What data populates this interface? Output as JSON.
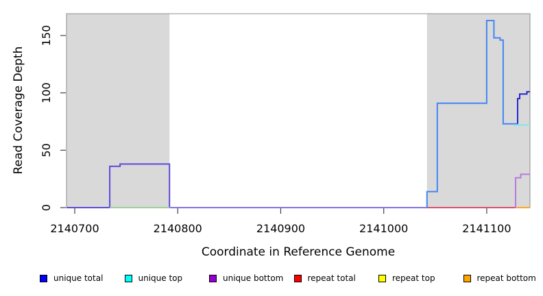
{
  "chart_data": {
    "type": "line",
    "title": "",
    "xlabel": "Coordinate in Reference Genome",
    "ylabel": "Read Coverage Depth",
    "xlim": [
      2140692,
      2141142
    ],
    "ylim": [
      0,
      169
    ],
    "x_ticks": [
      2140700,
      2140800,
      2140900,
      2141000,
      2141100
    ],
    "y_ticks": [
      0,
      50,
      100,
      150
    ],
    "grid": false,
    "legend_position": "bottom",
    "background_regions": [
      {
        "name": "masked-region-left",
        "x0": 2140692,
        "x1": 2140792,
        "color": "#d9d9d9"
      },
      {
        "name": "masked-region-right",
        "x0": 2141042,
        "x1": 2141142,
        "color": "#d9d9d9"
      }
    ],
    "series": [
      {
        "name": "unique-coverage-left-block",
        "color": "#5a49d8",
        "points": [
          [
            2140692,
            0
          ],
          [
            2140734,
            0
          ],
          [
            2140734,
            36
          ],
          [
            2140744,
            36
          ],
          [
            2140744,
            38
          ],
          [
            2140792,
            38
          ],
          [
            2140792,
            0
          ]
        ]
      },
      {
        "name": "unique-coverage-mid-zero",
        "color": "#7d73e8",
        "points": [
          [
            2140792,
            0
          ],
          [
            2141042,
            0
          ]
        ]
      },
      {
        "name": "top-strand-zero-left",
        "color": "#9ccf9a",
        "points": [
          [
            2140734,
            0
          ],
          [
            2140792,
            0
          ]
        ]
      },
      {
        "name": "repeat-total-zero-right",
        "color": "#d94f6e",
        "points": [
          [
            2141042,
            0
          ],
          [
            2141128,
            0
          ]
        ]
      },
      {
        "name": "repeat-bottom-zero-right",
        "color": "#ffa520",
        "points": [
          [
            2141129,
            0
          ],
          [
            2141142,
            0
          ]
        ]
      },
      {
        "name": "unique-total-main",
        "color": "#4285f4",
        "points": [
          [
            2141042,
            0
          ],
          [
            2141042,
            14
          ],
          [
            2141052,
            14
          ],
          [
            2141052,
            91
          ],
          [
            2141100,
            91
          ],
          [
            2141100,
            163
          ],
          [
            2141107,
            163
          ],
          [
            2141107,
            148
          ],
          [
            2141113,
            148
          ],
          [
            2141113,
            146
          ],
          [
            2141116,
            146
          ],
          [
            2141116,
            73
          ],
          [
            2141130,
            73
          ]
        ]
      },
      {
        "name": "unique-top-right",
        "color": "#7de8e8",
        "points": [
          [
            2141126,
            72
          ],
          [
            2141142,
            72
          ]
        ]
      },
      {
        "name": "unique-total-right-end",
        "color": "#2525cf",
        "points": [
          [
            2141130,
            73
          ],
          [
            2141130,
            95
          ],
          [
            2141132,
            95
          ],
          [
            2141132,
            99
          ],
          [
            2141139,
            99
          ],
          [
            2141139,
            101
          ],
          [
            2141142,
            101
          ]
        ]
      },
      {
        "name": "unique-bottom-right-end",
        "color": "#b879de",
        "points": [
          [
            2141128,
            0
          ],
          [
            2141128,
            26
          ],
          [
            2141133,
            26
          ],
          [
            2141133,
            29
          ],
          [
            2141142,
            29
          ]
        ]
      }
    ],
    "legend": {
      "items": [
        {
          "label": "unique total",
          "color": "#0000ff"
        },
        {
          "label": "unique top",
          "color": "#00ffff"
        },
        {
          "label": "unique bottom",
          "color": "#9400d3"
        },
        {
          "label": "repeat total",
          "color": "#ff0000"
        },
        {
          "label": "repeat top",
          "color": "#ffff00"
        },
        {
          "label": "repeat bottom",
          "color": "#ffa500"
        }
      ]
    }
  }
}
